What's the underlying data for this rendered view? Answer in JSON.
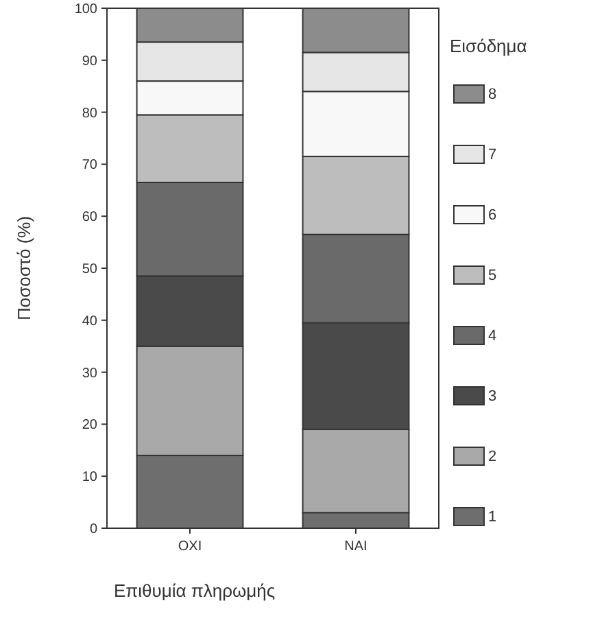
{
  "chart_data": {
    "type": "bar",
    "stacked": true,
    "categories": [
      "ΟΧΙ",
      "ΝΑΙ"
    ],
    "xlabel": "Επιθυμία πληρωμής",
    "ylabel": "Ποσοστό (%)",
    "legend_title": "Εισόδημα",
    "legend": "right",
    "ylim": [
      0,
      100
    ],
    "yticks": [
      0,
      10,
      20,
      30,
      40,
      50,
      60,
      70,
      80,
      90,
      100
    ],
    "series": [
      {
        "name": "1",
        "color": "#6e6e6e",
        "values": [
          14,
          3
        ]
      },
      {
        "name": "2",
        "color": "#a8a8a8",
        "values": [
          21,
          16
        ]
      },
      {
        "name": "3",
        "color": "#4a4a4a",
        "values": [
          13.5,
          20.5
        ]
      },
      {
        "name": "4",
        "color": "#6a6a6a",
        "values": [
          18,
          17
        ]
      },
      {
        "name": "5",
        "color": "#bdbdbd",
        "values": [
          13,
          15
        ]
      },
      {
        "name": "6",
        "color": "#f8f8f8",
        "values": [
          6.5,
          12.5
        ]
      },
      {
        "name": "7",
        "color": "#e6e6e6",
        "values": [
          7.5,
          7.5
        ]
      },
      {
        "name": "8",
        "color": "#8c8c8c",
        "values": [
          6.5,
          8.5
        ]
      }
    ]
  }
}
